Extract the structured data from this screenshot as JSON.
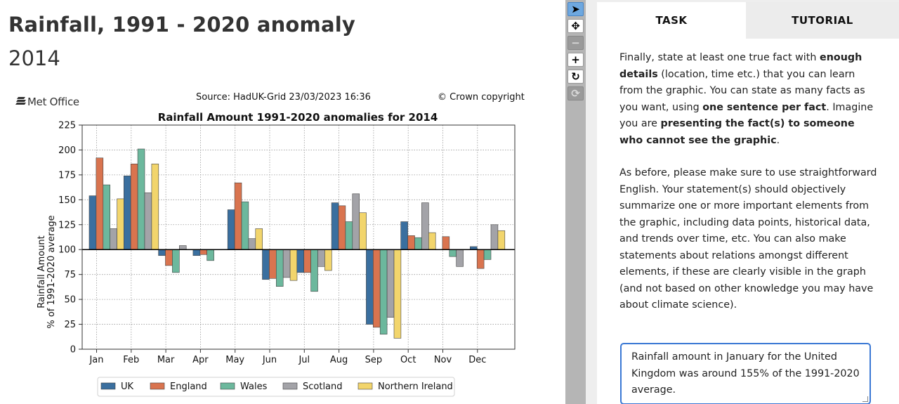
{
  "header": {
    "title": "Rainfall, 1991 - 2020 anomaly",
    "year": "2014"
  },
  "chart_header": {
    "logo_text": "Met Office",
    "source": "Source: HadUK-Grid 23/03/2023 16:36",
    "copyright": "© Crown copyright"
  },
  "chart_data": {
    "type": "bar",
    "title": "Rainfall Amount 1991-2020 anomalies for 2014",
    "xlabel": "",
    "ylabel_line1": "Rainfall Amount",
    "ylabel_line2": "% of 1991-2020 average",
    "ylim": [
      0,
      225
    ],
    "yticks": [
      0,
      25,
      50,
      75,
      100,
      125,
      150,
      175,
      200,
      225
    ],
    "baseline": 100,
    "grid": true,
    "legend_position": "bottom",
    "categories": [
      "Jan",
      "Feb",
      "Mar",
      "Apr",
      "May",
      "Jun",
      "Jul",
      "Aug",
      "Sep",
      "Oct",
      "Nov",
      "Dec"
    ],
    "series": [
      {
        "name": "UK",
        "color": "#3a6f9f",
        "values": [
          154,
          174,
          94,
          94,
          140,
          70,
          77,
          147,
          25,
          128,
          100,
          103
        ]
      },
      {
        "name": "England",
        "color": "#d9744f",
        "values": [
          192,
          186,
          84,
          95,
          167,
          71,
          77,
          144,
          22,
          114,
          113,
          81
        ]
      },
      {
        "name": "Wales",
        "color": "#6cb89d",
        "values": [
          165,
          201,
          77,
          89,
          148,
          63,
          58,
          128,
          15,
          112,
          93,
          90
        ]
      },
      {
        "name": "Scotland",
        "color": "#a3a3a8",
        "values": [
          121,
          157,
          104,
          100,
          111,
          72,
          83,
          156,
          32,
          147,
          83,
          125
        ]
      },
      {
        "name": "Northern Ireland",
        "color": "#f2d56c",
        "values": [
          151,
          186,
          100,
          100,
          121,
          69,
          79,
          137,
          11,
          117,
          100,
          119
        ]
      }
    ]
  },
  "toolbar": {
    "items": [
      {
        "name": "pointer-tool",
        "glyph": "➤",
        "state": "active"
      },
      {
        "name": "move-tool",
        "glyph": "✥",
        "state": "normal"
      },
      {
        "name": "zoom-out-tool",
        "glyph": "−",
        "state": "disabled"
      },
      {
        "name": "zoom-in-tool",
        "glyph": "+",
        "state": "normal"
      },
      {
        "name": "rotate-tool",
        "glyph": "↻",
        "state": "normal"
      },
      {
        "name": "reset-tool",
        "glyph": "⟳",
        "state": "disabled"
      }
    ]
  },
  "tabs": {
    "task": "TASK",
    "tutorial": "TUTORIAL"
  },
  "task_text": {
    "p1": [
      {
        "t": "Finally, state at least one true fact with ",
        "b": false
      },
      {
        "t": "enough details",
        "b": true
      },
      {
        "t": " (location, time etc.) that you can learn from the graphic. You can state as many facts as you want, using ",
        "b": false
      },
      {
        "t": "one sentence per fact",
        "b": true
      },
      {
        "t": ". Imagine you are ",
        "b": false
      },
      {
        "t": "presenting the fact(s) to someone who cannot see the graphic",
        "b": true
      },
      {
        "t": ".",
        "b": false
      }
    ],
    "p2": "As before, please make sure to use straightforward English. Your statement(s) should objectively summarize one or more important elements from the graphic, including data points, historical data, and trends over time, etc. You can also make statements about relations amongst different elements, if these are clearly visible in the graph (and not based on other knowledge you may have about climate science)."
  },
  "answer": {
    "value": "Rainfall amount in January for the United Kingdom was around 155% of the 1991-2020 average."
  }
}
